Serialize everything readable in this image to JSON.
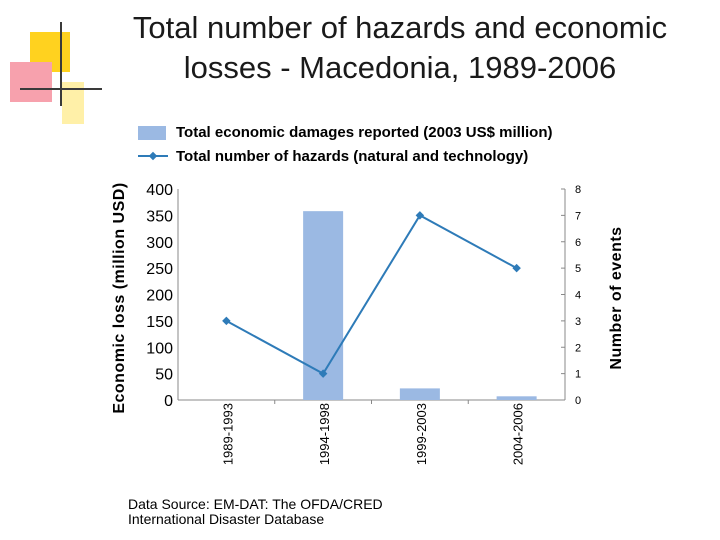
{
  "slide": {
    "title_line1": "Total number of hazards and economic",
    "title_line2": "losses - Macedonia, 1989-2006",
    "source_line1": "Data Source: EM-DAT: The OFDA/CRED",
    "source_line2": "International Disaster Database"
  },
  "colors": {
    "bar": "#9bb9e3",
    "line": "#2e7bb8",
    "deco_yellow": "#ffd21f",
    "deco_pink": "#f7a1ad",
    "deco_yellow_light": "#fff0a8"
  },
  "chart_data": {
    "type": "bar+line",
    "categories": [
      "1989-1993",
      "1994-1998",
      "1999-2003",
      "2004-2006"
    ],
    "series": [
      {
        "name": "Total economic damages reported (2003 US$ million)",
        "type": "bar",
        "axis": "left",
        "values": [
          0,
          358,
          22,
          7
        ]
      },
      {
        "name": "Total number of hazards (natural and technology)",
        "type": "line",
        "axis": "right",
        "values": [
          3,
          1,
          7,
          5
        ]
      }
    ],
    "ylabel_left": "Economic loss (million USD)",
    "ylabel_right": "Number of events",
    "ylim_left": [
      0,
      400
    ],
    "ylim_right": [
      0,
      8
    ],
    "yticks_left": [
      "0",
      "50",
      "100",
      "150",
      "200",
      "250",
      "300",
      "350",
      "400"
    ],
    "yticks_right": [
      "0",
      "1",
      "2",
      "3",
      "4",
      "5",
      "6",
      "7",
      "8"
    ],
    "legend_position": "top"
  }
}
